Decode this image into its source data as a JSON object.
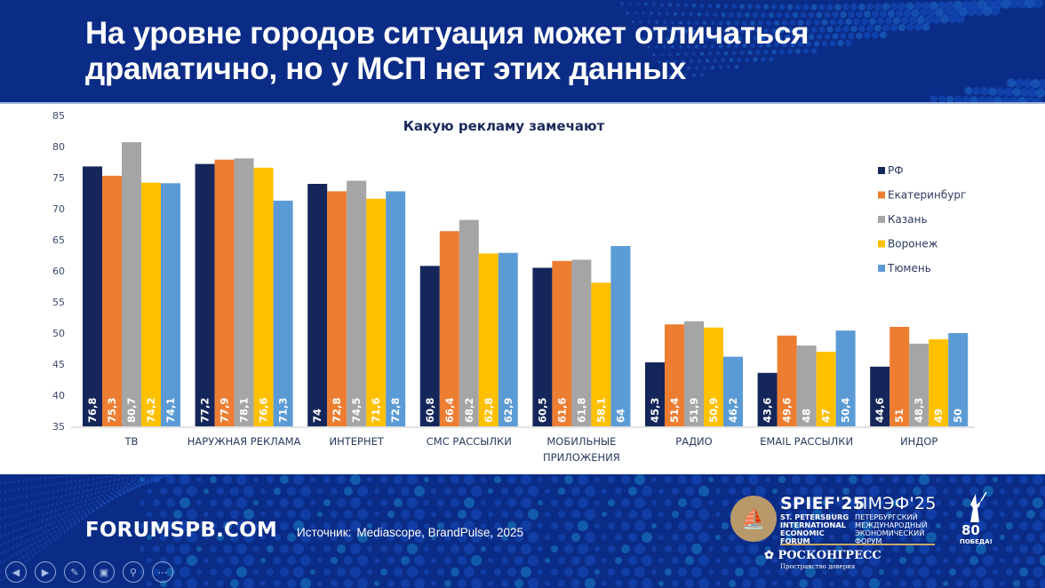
{
  "header": {
    "title": "На уровне городов ситуация может отличаться\nдраматично, но у МСП нет этих данных"
  },
  "footer": {
    "site": "FORUMSPB.COM",
    "source_label": "Источник:",
    "source_value": "Mediascope, BrandPulse, 2025",
    "nav_icons": [
      "previous-icon",
      "next-icon",
      "pen-icon",
      "slides-icon",
      "zoom-icon",
      "more-icon"
    ],
    "logos": {
      "spief_title": "SPIEF'25",
      "spief_sub": "ST. PETERSBURG\nINTERNATIONAL\nECONOMIC\nFORUM",
      "pmef_title": "ПМЭФ'25",
      "pmef_sub": "ПЕТЕРБУРГСКИЙ\nМЕЖДУНАРОДНЫЙ\nЭКОНОМИЧЕСКИЙ\nФОРУМ",
      "roscongress": "РОСКОНГРЕСС",
      "roscongress_tag": "Пространство доверия",
      "victory_num": "80",
      "victory_word": "ПОБЕДА!"
    }
  },
  "chart_data": {
    "type": "bar",
    "title": "Какую рекламу замечают",
    "xlabel": "",
    "ylabel": "",
    "ylim": [
      35,
      85
    ],
    "yticks": [
      35,
      40,
      45,
      50,
      55,
      60,
      65,
      70,
      75,
      80,
      85
    ],
    "grid": false,
    "legend_position": "right",
    "categories": [
      [
        "ТВ"
      ],
      [
        "НАРУЖНАЯ РЕКЛАМА"
      ],
      [
        "ИНТЕРНЕТ"
      ],
      [
        "СМС РАССЫЛКИ"
      ],
      [
        "МОБИЛЬНЫЕ",
        "ПРИЛОЖЕНИЯ"
      ],
      [
        "РАДИО"
      ],
      [
        "EMAIL РАССЫЛКИ"
      ],
      [
        "ИНДОР"
      ]
    ],
    "series": [
      {
        "name": "РФ",
        "color": "#14265a",
        "values": [
          76.8,
          77.2,
          74,
          60.8,
          60.5,
          45.3,
          43.6,
          44.6
        ],
        "labels": [
          "76,8",
          "77,2",
          "74",
          "60,8",
          "60,5",
          "45,3",
          "43,6",
          "44,6"
        ]
      },
      {
        "name": "Екатеринбург",
        "color": "#ed7d31",
        "values": [
          75.3,
          77.9,
          72.8,
          66.4,
          61.6,
          51.4,
          49.6,
          51
        ],
        "labels": [
          "75,3",
          "77,9",
          "72,8",
          "66,4",
          "61,6",
          "51,4",
          "49,6",
          "51"
        ]
      },
      {
        "name": "Казань",
        "color": "#a5a5a5",
        "values": [
          80.7,
          78.1,
          74.5,
          68.2,
          61.8,
          51.9,
          48,
          48.3
        ],
        "labels": [
          "80,7",
          "78,1",
          "74,5",
          "68,2",
          "61,8",
          "51,9",
          "48",
          "48,3"
        ]
      },
      {
        "name": "Воронеж",
        "color": "#ffc000",
        "values": [
          74.2,
          76.6,
          71.6,
          62.8,
          58.1,
          50.9,
          47,
          49
        ],
        "labels": [
          "74,2",
          "76,6",
          "71,6",
          "62,8",
          "58,1",
          "50,9",
          "47",
          "49"
        ]
      },
      {
        "name": "Тюмень",
        "color": "#5b9bd5",
        "values": [
          74.1,
          71.3,
          72.8,
          62.9,
          64,
          46.2,
          50.4,
          50
        ],
        "labels": [
          "74,1",
          "71,3",
          "72,8",
          "62,9",
          "64",
          "46,2",
          "50,4",
          "50"
        ]
      }
    ]
  }
}
